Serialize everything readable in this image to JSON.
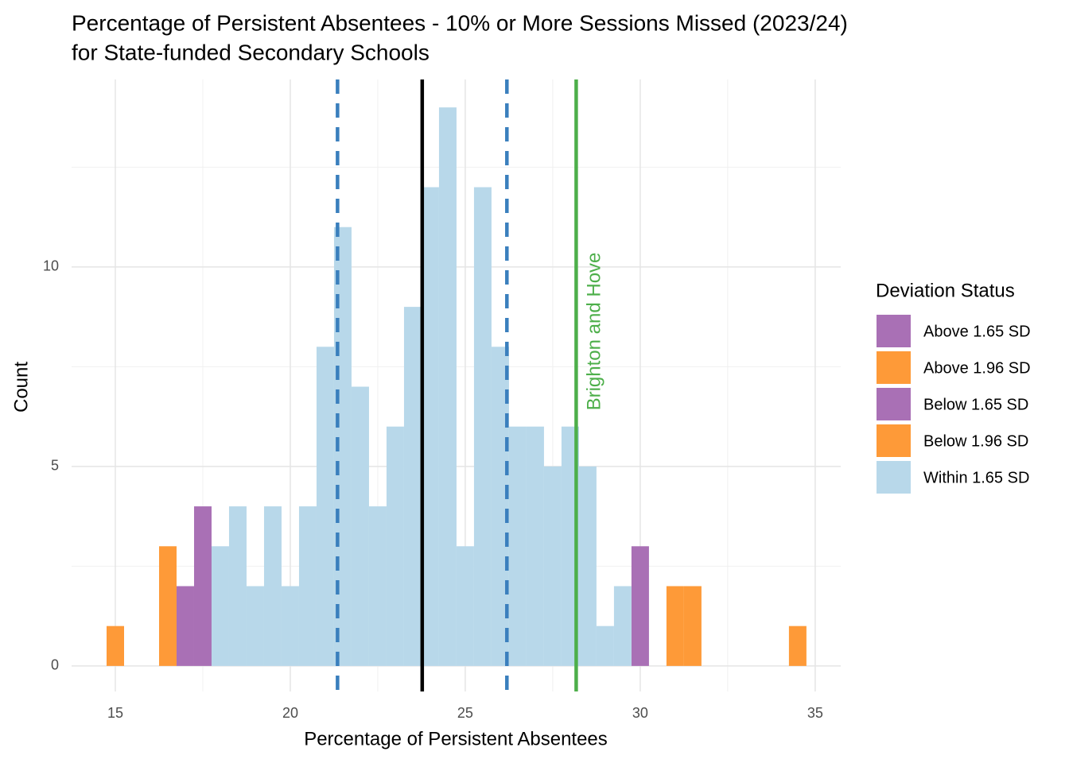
{
  "chart_data": {
    "type": "histogram",
    "title": [
      "Percentage of Persistent Absentees - 10% or More Sessions Missed (2023/24)",
      "for State-funded Secondary Schools"
    ],
    "x_label": "Percentage of Persistent Absentees",
    "y_label": "Count",
    "legend_title": "Deviation Status",
    "bins": [
      14.75,
      15.25,
      15.75,
      16.25,
      16.75,
      17.25,
      17.75,
      18.25,
      18.75,
      19.25,
      19.75,
      20.25,
      20.75,
      21.25,
      21.75,
      22.25,
      22.75,
      23.25,
      23.75,
      24.25,
      24.75,
      25.25,
      25.75,
      26.25,
      26.75,
      27.25,
      27.75,
      28.25,
      28.75,
      29.25,
      29.75,
      30.25,
      30.75,
      31.25,
      31.75,
      32.25,
      32.75,
      33.25,
      33.75,
      34.25,
      34.75
    ],
    "series": [
      {
        "name": "Above 1.65 SD",
        "color": "#a970b5",
        "values": [
          0,
          0,
          0,
          0,
          0,
          0,
          0,
          0,
          0,
          0,
          0,
          0,
          0,
          0,
          0,
          0,
          0,
          0,
          0,
          0,
          0,
          0,
          0,
          0,
          0,
          0,
          0,
          0,
          0,
          0,
          3,
          0,
          0,
          0,
          0,
          0,
          0,
          0,
          0,
          0
        ]
      },
      {
        "name": "Above 1.96 SD",
        "color": "#fe9a38",
        "values": [
          0,
          0,
          0,
          0,
          0,
          0,
          0,
          0,
          0,
          0,
          0,
          0,
          0,
          0,
          0,
          0,
          0,
          0,
          0,
          0,
          0,
          0,
          0,
          0,
          0,
          0,
          0,
          0,
          0,
          0,
          0,
          0,
          2,
          2,
          0,
          0,
          0,
          0,
          0,
          1
        ]
      },
      {
        "name": "Below 1.65 SD",
        "color": "#a970b5",
        "values": [
          0,
          0,
          0,
          0,
          2,
          4,
          0,
          0,
          0,
          0,
          0,
          0,
          0,
          0,
          0,
          0,
          0,
          0,
          0,
          0,
          0,
          0,
          0,
          0,
          0,
          0,
          0,
          0,
          0,
          0,
          0,
          0,
          0,
          0,
          0,
          0,
          0,
          0,
          0,
          0
        ]
      },
      {
        "name": "Below 1.96 SD",
        "color": "#fe9a38",
        "values": [
          1,
          0,
          0,
          3,
          0,
          0,
          0,
          0,
          0,
          0,
          0,
          0,
          0,
          0,
          0,
          0,
          0,
          0,
          0,
          0,
          0,
          0,
          0,
          0,
          0,
          0,
          0,
          0,
          0,
          0,
          0,
          0,
          0,
          0,
          0,
          0,
          0,
          0,
          0,
          0
        ]
      },
      {
        "name": "Within 1.65 SD",
        "color": "#b8d8ea",
        "values": [
          0,
          0,
          0,
          0,
          0,
          0,
          3,
          4,
          2,
          4,
          2,
          4,
          8,
          11,
          7,
          4,
          6,
          9,
          12,
          14,
          3,
          12,
          8,
          6,
          6,
          5,
          6,
          5,
          1,
          2,
          0,
          0,
          0,
          0,
          0,
          0,
          0,
          0,
          0,
          0
        ]
      }
    ],
    "vlines": [
      {
        "value": 21.35,
        "color": "#3a7fbd",
        "style": "dashed"
      },
      {
        "value": 23.77,
        "color": "#000000",
        "style": "solid"
      },
      {
        "value": 26.19,
        "color": "#3a7fbd",
        "style": "dashed"
      },
      {
        "value": 28.17,
        "color": "#4daf4a",
        "style": "solid",
        "label": "Brighton and Hove"
      }
    ],
    "xlim": [
      13.75,
      35.73
    ],
    "ylim": [
      -0.64,
      14.7
    ],
    "xticks": [
      15,
      20,
      25,
      30,
      35
    ],
    "yticks": [
      0,
      5,
      10
    ],
    "minor_xticks": [
      17.5,
      22.5,
      27.5,
      32.5
    ],
    "minor_yticks": [
      2.5,
      7.5,
      12.5
    ],
    "grid": true
  }
}
